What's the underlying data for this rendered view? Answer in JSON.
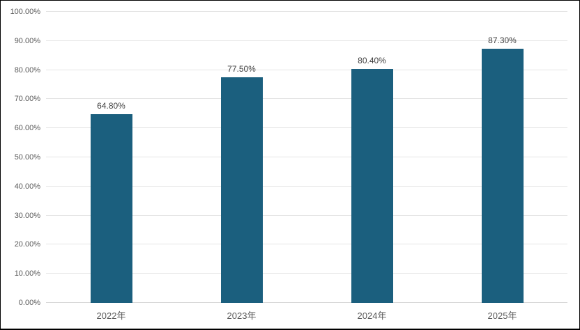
{
  "chart_data": {
    "type": "bar",
    "title": "",
    "xlabel": "",
    "ylabel": "",
    "categories": [
      "2022年",
      "2023年",
      "2024年",
      "2025年"
    ],
    "values": [
      64.8,
      77.5,
      80.4,
      87.3
    ],
    "value_labels": [
      "64.80%",
      "77.50%",
      "80.40%",
      "87.30%"
    ],
    "ylim": [
      0,
      100
    ],
    "ytick_step": 10,
    "ytick_labels": [
      "0.00%",
      "10.00%",
      "20.00%",
      "30.00%",
      "40.00%",
      "50.00%",
      "60.00%",
      "70.00%",
      "80.00%",
      "90.00%",
      "100.00%"
    ],
    "grid": true,
    "legend": "none",
    "colors": {
      "bar": "#1b5f7e",
      "gridline": "#e5e5e5",
      "axis_line": "#d9d9d9",
      "axis_text": "#595959",
      "data_label": "#404040",
      "background": "#ffffff",
      "border": "#000000"
    }
  }
}
